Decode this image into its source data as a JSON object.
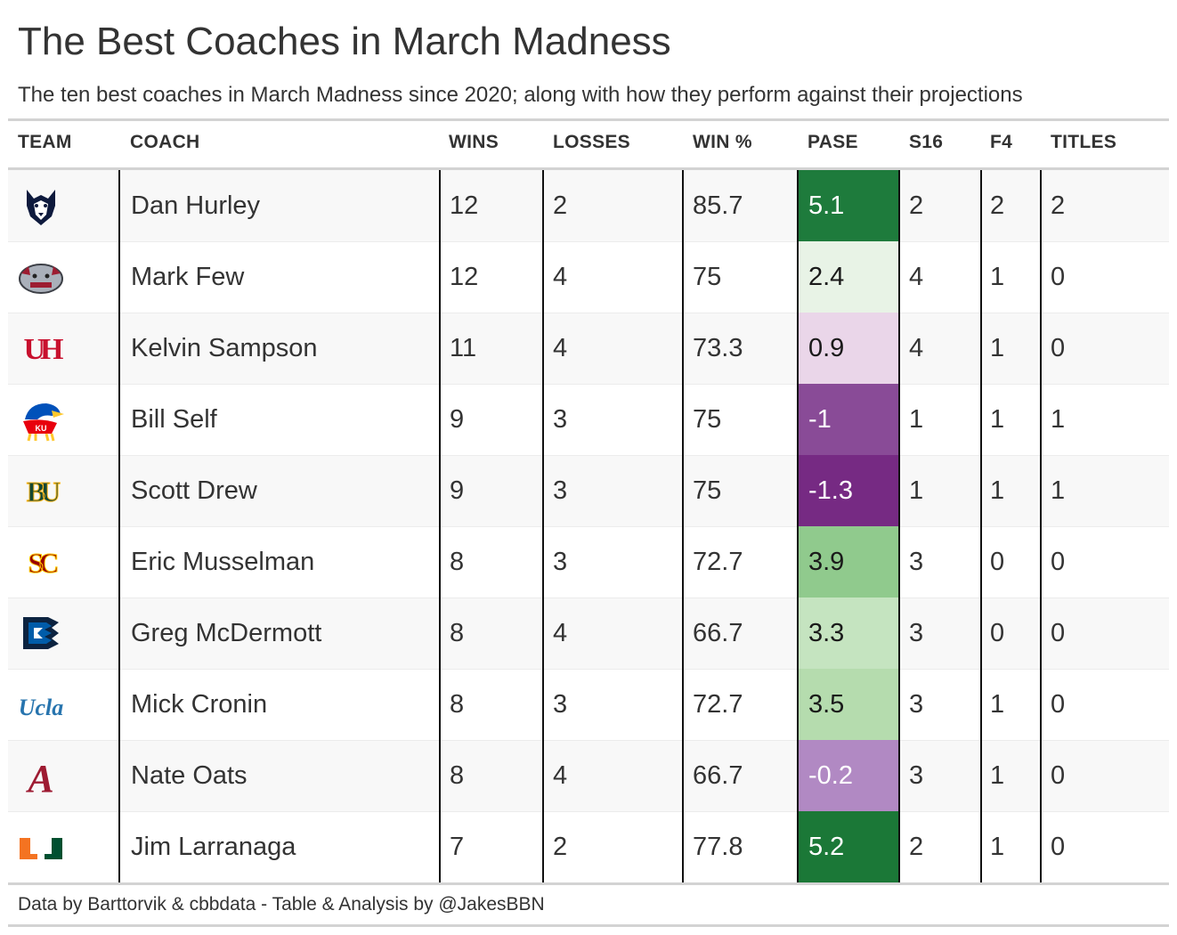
{
  "chart_data": {
    "type": "table",
    "title": "The Best Coaches in March Madness",
    "subtitle": "The ten best coaches in March Madness since 2020; along with how they perform against their projections",
    "columns": [
      "TEAM",
      "COACH",
      "WINS",
      "LOSSES",
      "WIN %",
      "PASE",
      "S16",
      "F4",
      "TITLES"
    ],
    "rows": [
      {
        "team": "UConn",
        "coach": "Dan Hurley",
        "wins": "12",
        "losses": "2",
        "win_pct": "85.7",
        "pase": "5.1",
        "pase_color": "#1e7b3c",
        "s16": "2",
        "f4": "2",
        "titles": "2"
      },
      {
        "team": "Gonzaga",
        "coach": "Mark Few",
        "wins": "12",
        "losses": "4",
        "win_pct": "75",
        "pase": "2.4",
        "pase_color": "#e8f3e6",
        "s16": "4",
        "f4": "1",
        "titles": "0"
      },
      {
        "team": "Houston",
        "coach": "Kelvin Sampson",
        "wins": "11",
        "losses": "4",
        "win_pct": "73.3",
        "pase": "0.9",
        "pase_color": "#ead6e9",
        "s16": "4",
        "f4": "1",
        "titles": "0"
      },
      {
        "team": "Kansas",
        "coach": "Bill Self",
        "wins": "9",
        "losses": "3",
        "win_pct": "75",
        "pase": "-1",
        "pase_color": "#894b97",
        "s16": "1",
        "f4": "1",
        "titles": "1"
      },
      {
        "team": "Baylor",
        "coach": "Scott Drew",
        "wins": "9",
        "losses": "3",
        "win_pct": "75",
        "pase": "-1.3",
        "pase_color": "#762a83",
        "s16": "1",
        "f4": "1",
        "titles": "1"
      },
      {
        "team": "USC",
        "coach": "Eric Musselman",
        "wins": "8",
        "losses": "3",
        "win_pct": "72.7",
        "pase": "3.9",
        "pase_color": "#90ca8d",
        "s16": "3",
        "f4": "0",
        "titles": "0"
      },
      {
        "team": "Creighton",
        "coach": "Greg McDermott",
        "wins": "8",
        "losses": "4",
        "win_pct": "66.7",
        "pase": "3.3",
        "pase_color": "#c5e4c0",
        "s16": "3",
        "f4": "0",
        "titles": "0"
      },
      {
        "team": "UCLA",
        "coach": "Mick Cronin",
        "wins": "8",
        "losses": "3",
        "win_pct": "72.7",
        "pase": "3.5",
        "pase_color": "#b5dcae",
        "s16": "3",
        "f4": "1",
        "titles": "0"
      },
      {
        "team": "Alabama",
        "coach": "Nate Oats",
        "wins": "8",
        "losses": "4",
        "win_pct": "66.7",
        "pase": "-0.2",
        "pase_color": "#b189c3",
        "s16": "3",
        "f4": "1",
        "titles": "0"
      },
      {
        "team": "Miami",
        "coach": "Jim Larranaga",
        "wins": "7",
        "losses": "2",
        "win_pct": "77.8",
        "pase": "5.2",
        "pase_color": "#1b7837",
        "s16": "2",
        "f4": "1",
        "titles": "0"
      }
    ],
    "footer": "Data by Barttorvik & cbbdata - Table & Analysis by @JakesBBN"
  },
  "logos": {
    "UConn": {
      "icon": "husky-icon",
      "colors": [
        "#0e1a3d",
        "#9aa3ad"
      ],
      "text": ""
    },
    "Gonzaga": {
      "icon": "bulldog-icon",
      "colors": [
        "#aab0ba",
        "#9d1c31"
      ],
      "text": ""
    },
    "Houston": {
      "icon": "interlocking-uh-icon",
      "colors": [
        "#c8102e"
      ],
      "text": "UH"
    },
    "Kansas": {
      "icon": "jayhawk-icon",
      "colors": [
        "#0051ba",
        "#e8000d",
        "#ffc82d"
      ],
      "text": "KU"
    },
    "Baylor": {
      "icon": "interlocking-bu-icon",
      "colors": [
        "#154734",
        "#ffb81c"
      ],
      "text": "BU"
    },
    "USC": {
      "icon": "interlocking-sc-icon",
      "colors": [
        "#990000",
        "#ffcc00"
      ],
      "text": "SC"
    },
    "Creighton": {
      "icon": "bluejay-icon",
      "colors": [
        "#005ca9",
        "#0c2340"
      ],
      "text": ""
    },
    "UCLA": {
      "icon": "ucla-script-icon",
      "colors": [
        "#2774ae"
      ],
      "text": "Ucla"
    },
    "Alabama": {
      "icon": "script-a-icon",
      "colors": [
        "#9e1b32"
      ],
      "text": "A"
    },
    "Miami": {
      "icon": "split-u-icon",
      "colors": [
        "#f47321",
        "#005030"
      ],
      "text": ""
    }
  }
}
